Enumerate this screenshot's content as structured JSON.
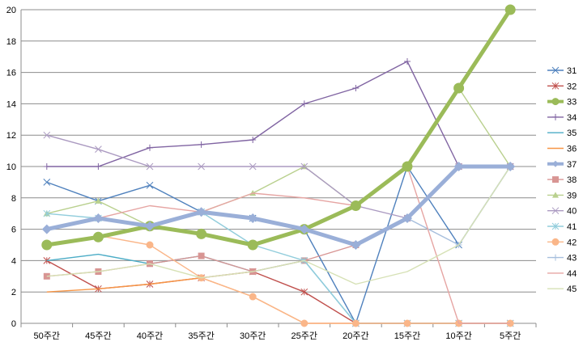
{
  "chart_data": {
    "type": "line",
    "categories": [
      "50주간",
      "45주간",
      "40주간",
      "35주간",
      "30주간",
      "25주간",
      "20주간",
      "15주간",
      "10주간",
      "5주간"
    ],
    "ylim": [
      0,
      20
    ],
    "yticks": [
      0,
      2,
      4,
      6,
      8,
      10,
      12,
      14,
      16,
      18,
      20
    ],
    "grid": true,
    "legend_position": "right",
    "series": [
      {
        "name": "31",
        "color": "#4f81bd",
        "marker": "x",
        "weight": "thin",
        "values": [
          9,
          7.8,
          8.8,
          7.1,
          6.7,
          6,
          0,
          10,
          5,
          10
        ]
      },
      {
        "name": "32",
        "color": "#c0504d",
        "marker": "star",
        "weight": "thin",
        "values": [
          4,
          2.2,
          2.5,
          2.9,
          3.3,
          2,
          0,
          0,
          0,
          0
        ]
      },
      {
        "name": "33",
        "color": "#9bbb59",
        "marker": "circle",
        "weight": "thick",
        "values": [
          5,
          5.5,
          6.2,
          5.7,
          5,
          6,
          7.5,
          10,
          15,
          20
        ]
      },
      {
        "name": "34",
        "color": "#8064a2",
        "marker": "plus",
        "weight": "thin",
        "values": [
          10,
          10,
          11.2,
          11.4,
          11.7,
          14,
          15,
          16.7,
          10,
          10
        ]
      },
      {
        "name": "35",
        "color": "#4bacc6",
        "marker": "none",
        "weight": "thin",
        "values": [
          4,
          4.4,
          3.8,
          4.3,
          3.3,
          4,
          0,
          0,
          0,
          0
        ]
      },
      {
        "name": "36",
        "color": "#f79646",
        "marker": "none",
        "weight": "thin",
        "values": [
          2,
          2.2,
          2.5,
          2.9,
          1.7,
          0,
          0,
          0,
          0,
          0
        ]
      },
      {
        "name": "37",
        "color": "#9aafd8",
        "marker": "diamond",
        "weight": "thick",
        "values": [
          6,
          6.7,
          6.2,
          7.1,
          6.7,
          6,
          5,
          6.7,
          10,
          10
        ]
      },
      {
        "name": "38",
        "color": "#d89593",
        "marker": "square",
        "weight": "thin",
        "values": [
          3,
          3.3,
          3.8,
          4.3,
          3.3,
          4,
          5,
          6.7,
          10,
          10
        ]
      },
      {
        "name": "39",
        "color": "#b9d08e",
        "marker": "triangle",
        "weight": "thin",
        "values": [
          7,
          7.8,
          6.2,
          7.1,
          8.3,
          10,
          7.5,
          10,
          15,
          10
        ]
      },
      {
        "name": "40",
        "color": "#ab9ac1",
        "marker": "x",
        "weight": "thin",
        "values": [
          12,
          11.1,
          10,
          10,
          10,
          10,
          7.5,
          6.7,
          10,
          10
        ]
      },
      {
        "name": "41",
        "color": "#92cddc",
        "marker": "star",
        "weight": "thin",
        "values": [
          7,
          6.7,
          6.2,
          7.1,
          5,
          4,
          0,
          0,
          0,
          0
        ]
      },
      {
        "name": "42",
        "color": "#fab689",
        "marker": "circle",
        "weight": "thin",
        "values": [
          5,
          5.6,
          5,
          2.9,
          1.7,
          0,
          0,
          0,
          0,
          0
        ]
      },
      {
        "name": "43",
        "color": "#a7bfdd",
        "marker": "plus",
        "weight": "thin",
        "values": [
          6,
          6.7,
          6.2,
          7.1,
          6.7,
          6,
          5,
          6.7,
          5,
          10
        ]
      },
      {
        "name": "44",
        "color": "#e6a5a3",
        "marker": "none",
        "weight": "thin",
        "values": [
          6,
          6.7,
          7.5,
          7.1,
          8.3,
          8,
          7.5,
          10,
          0,
          0
        ]
      },
      {
        "name": "45",
        "color": "#d6e1b5",
        "marker": "none",
        "weight": "thin",
        "values": [
          3,
          3.3,
          3.8,
          2.9,
          3.3,
          4,
          2.5,
          3.3,
          5,
          10
        ]
      }
    ]
  }
}
